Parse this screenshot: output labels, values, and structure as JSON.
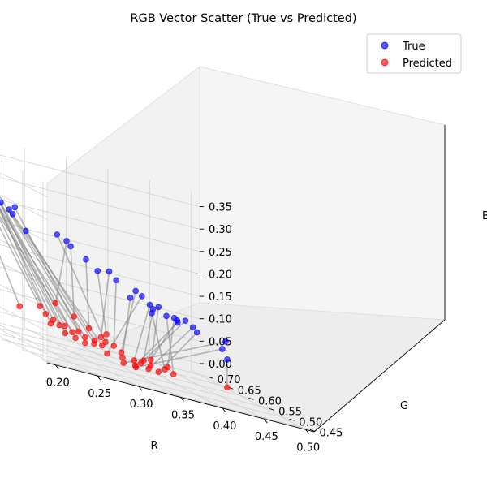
{
  "chart_data": {
    "type": "scatter",
    "projection": "3d",
    "title": "RGB Vector Scatter (True vs Predicted)",
    "xlabel": "R",
    "ylabel": "G",
    "zlabel": "B",
    "xticks": [
      "0.20",
      "0.25",
      "0.30",
      "0.35",
      "0.40",
      "0.45",
      "0.50"
    ],
    "yticks": [
      "0.45",
      "0.50",
      "0.55",
      "0.60",
      "0.65",
      "0.70"
    ],
    "zticks": [
      "0.00",
      "0.05",
      "0.10",
      "0.15",
      "0.20",
      "0.25",
      "0.30",
      "0.35"
    ],
    "xlim": [
      0.19,
      0.51
    ],
    "ylim": [
      0.44,
      0.72
    ],
    "zlim": [
      -0.02,
      0.38
    ],
    "grid": true,
    "legend_position": "top-right",
    "connector_color": "#808080",
    "series": [
      {
        "name": "True",
        "color": "#0000ff",
        "points": [
          [
            0.219,
            0.714,
            0.333
          ],
          [
            0.222,
            0.709,
            0.327
          ],
          [
            0.233,
            0.706,
            0.313
          ],
          [
            0.239,
            0.703,
            0.305
          ],
          [
            0.24,
            0.701,
            0.302
          ],
          [
            0.243,
            0.699,
            0.299
          ],
          [
            0.246,
            0.695,
            0.287
          ],
          [
            0.232,
            0.703,
            0.292
          ],
          [
            0.239,
            0.693,
            0.282
          ],
          [
            0.251,
            0.688,
            0.275
          ],
          [
            0.246,
            0.682,
            0.272
          ],
          [
            0.25,
            0.676,
            0.255
          ],
          [
            0.262,
            0.666,
            0.255
          ],
          [
            0.256,
            0.668,
            0.246
          ],
          [
            0.256,
            0.659,
            0.24
          ],
          [
            0.264,
            0.643,
            0.214
          ],
          [
            0.295,
            0.63,
            0.227
          ],
          [
            0.302,
            0.621,
            0.22
          ],
          [
            0.304,
            0.615,
            0.212
          ],
          [
            0.315,
            0.6,
            0.195
          ],
          [
            0.323,
            0.588,
            0.179
          ],
          [
            0.334,
            0.582,
            0.186
          ],
          [
            0.337,
            0.571,
            0.173
          ],
          [
            0.353,
            0.556,
            0.164
          ],
          [
            0.358,
            0.551,
            0.157
          ],
          [
            0.35,
            0.563,
            0.144
          ],
          [
            0.364,
            0.544,
            0.144
          ],
          [
            0.366,
            0.54,
            0.137
          ],
          [
            0.372,
            0.539,
            0.145
          ],
          [
            0.363,
            0.537,
            0.128
          ],
          [
            0.379,
            0.534,
            0.131
          ],
          [
            0.384,
            0.525,
            0.133
          ],
          [
            0.386,
            0.522,
            0.13
          ],
          [
            0.394,
            0.518,
            0.135
          ],
          [
            0.387,
            0.523,
            0.125
          ],
          [
            0.4,
            0.512,
            0.126
          ],
          [
            0.403,
            0.508,
            0.118
          ],
          [
            0.425,
            0.483,
            0.12
          ],
          [
            0.422,
            0.485,
            0.101
          ],
          [
            0.425,
            0.479,
            0.082
          ]
        ]
      },
      {
        "name": "Predicted",
        "color": "#ff0000",
        "points": [
          [
            0.282,
            0.695,
            0.03
          ],
          [
            0.3,
            0.682,
            0.045
          ],
          [
            0.305,
            0.678,
            0.032
          ],
          [
            0.31,
            0.67,
            0.025
          ],
          [
            0.315,
            0.665,
            0.018
          ],
          [
            0.308,
            0.672,
            0.015
          ],
          [
            0.32,
            0.662,
            0.02
          ],
          [
            0.326,
            0.656,
            0.012
          ],
          [
            0.331,
            0.651,
            0.018
          ],
          [
            0.337,
            0.647,
            0.01
          ],
          [
            0.318,
            0.657,
            0.005
          ],
          [
            0.327,
            0.65,
            0.002
          ],
          [
            0.335,
            0.643,
            -0.002
          ],
          [
            0.343,
            0.637,
            0.003
          ],
          [
            0.35,
            0.632,
            0.005
          ],
          [
            0.345,
            0.64,
            0.01
          ],
          [
            0.353,
            0.63,
            0.015
          ],
          [
            0.32,
            0.685,
            0.06
          ],
          [
            0.334,
            0.668,
            0.045
          ],
          [
            0.346,
            0.656,
            0.03
          ],
          [
            0.36,
            0.642,
            0.03
          ],
          [
            0.355,
            0.645,
            0.02
          ],
          [
            0.366,
            0.636,
            0.01
          ],
          [
            0.372,
            0.63,
            0.001
          ],
          [
            0.356,
            0.632,
            -0.01
          ],
          [
            0.37,
            0.623,
            -0.008
          ],
          [
            0.38,
            0.615,
            -0.006
          ],
          [
            0.39,
            0.612,
            0.0
          ],
          [
            0.395,
            0.605,
            -0.006
          ],
          [
            0.408,
            0.597,
            -0.004
          ],
          [
            0.415,
            0.59,
            -0.008
          ],
          [
            0.412,
            0.598,
            0.002
          ],
          [
            0.4,
            0.615,
            0.005
          ],
          [
            0.385,
            0.608,
            -0.006
          ],
          [
            0.376,
            0.604,
            -0.014
          ],
          [
            0.388,
            0.596,
            -0.012
          ],
          [
            0.396,
            0.588,
            -0.011
          ],
          [
            0.364,
            0.608,
            -0.016
          ],
          [
            0.374,
            0.598,
            -0.016
          ],
          [
            0.445,
            0.52,
            0.01
          ]
        ]
      }
    ]
  }
}
